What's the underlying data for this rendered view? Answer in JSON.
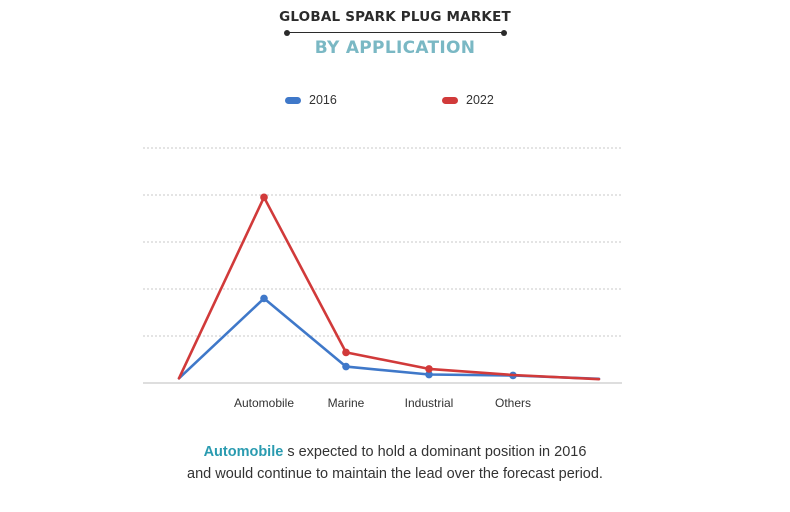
{
  "header": {
    "title": "GLOBAL SPARK PLUG MARKET",
    "subtitle": "BY APPLICATION"
  },
  "caption": {
    "highlight": "Automobile",
    "line1_rest": " s expected to  hold a dominant position in 2016",
    "line2": "and would continue to maintain the lead over the forecast period."
  },
  "colors": {
    "series_2016": "#3f78c9",
    "series_2022": "#d13a3a",
    "title": "#2b2b2b",
    "subtitle": "#7ab8c4",
    "caption_highlight": "#2a9bb0"
  },
  "chart_data": {
    "type": "line",
    "title": "",
    "xlabel": "",
    "ylabel": "",
    "categories": [
      "",
      "Automobile",
      "Marine",
      "Industrial",
      "Others",
      ""
    ],
    "ylim": [
      0,
      5
    ],
    "grid": true,
    "legend_position": "top",
    "series": [
      {
        "name": "2016",
        "color": "#3f78c9",
        "values": [
          0.1,
          1.8,
          0.35,
          0.18,
          0.16,
          0.09
        ],
        "markers": [
          false,
          true,
          true,
          true,
          true,
          false
        ]
      },
      {
        "name": "2022",
        "color": "#d13a3a",
        "values": [
          0.1,
          3.95,
          0.65,
          0.3,
          0.17,
          0.08
        ],
        "markers": [
          false,
          true,
          true,
          true,
          false,
          false
        ]
      }
    ]
  }
}
